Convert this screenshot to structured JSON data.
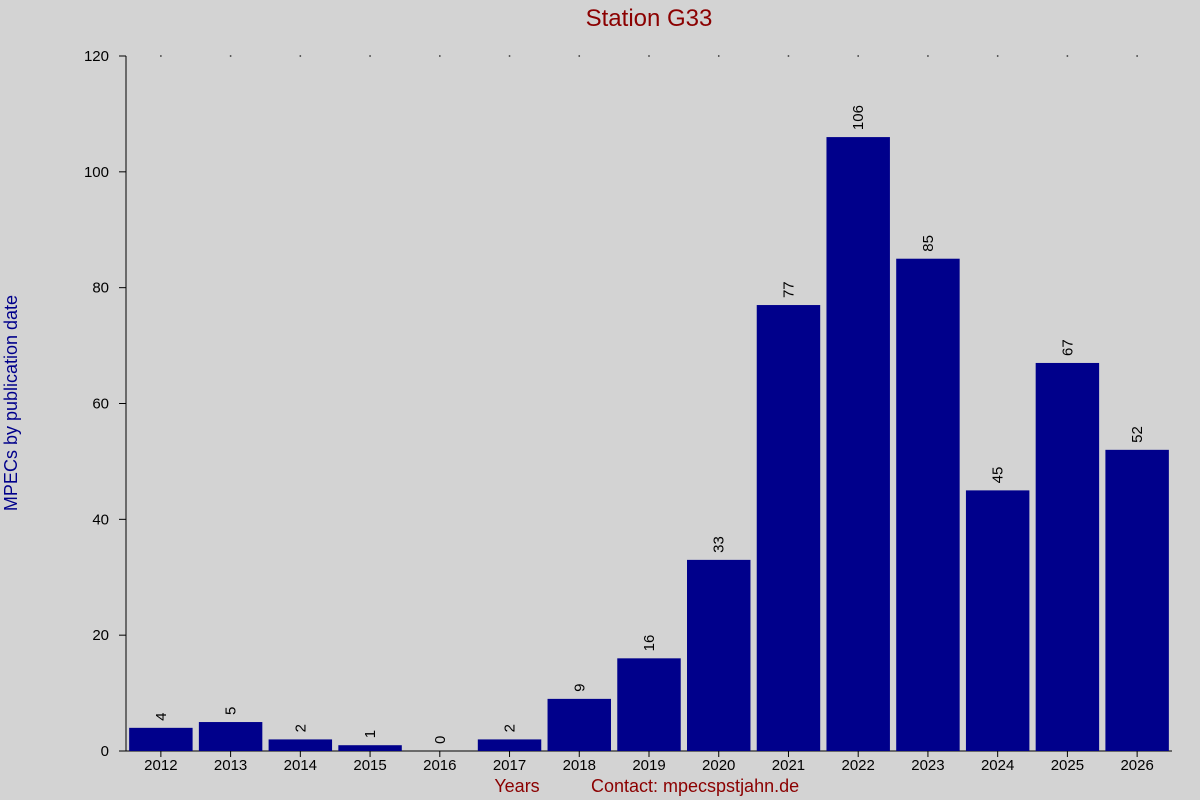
{
  "chart_data": {
    "type": "bar",
    "title": "Station G33",
    "xlabel": "Years",
    "ylabel": "MPECs by publication date",
    "footer_note": "Contact: mpecspstjahn.de",
    "categories": [
      "2012",
      "2013",
      "2014",
      "2015",
      "2016",
      "2017",
      "2018",
      "2019",
      "2020",
      "2021",
      "2022",
      "2023",
      "2024",
      "2025",
      "2026"
    ],
    "values": [
      4,
      5,
      2,
      1,
      0,
      2,
      9,
      16,
      33,
      77,
      106,
      85,
      45,
      67,
      52
    ],
    "ylim": [
      0,
      120
    ],
    "yticks": [
      0,
      20,
      40,
      60,
      80,
      100,
      120
    ],
    "grid": false,
    "bar_color": "#00008b",
    "background_color": "#d3d3d3",
    "title_color": "#8b0000",
    "ylabel_color": "#00008b"
  }
}
